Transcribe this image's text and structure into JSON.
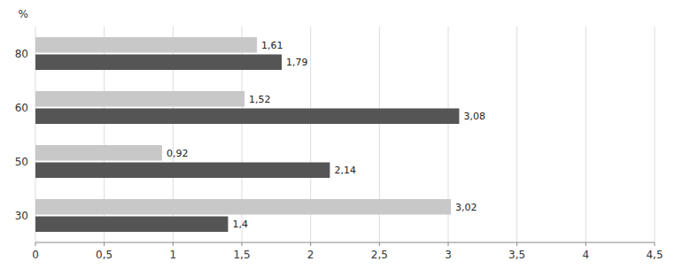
{
  "chart_data": {
    "type": "bar",
    "orientation": "horizontal",
    "ylabel": "%",
    "categories": [
      "80",
      "60",
      "50",
      "30"
    ],
    "series": [
      {
        "color": "#c8c8c8",
        "values": [
          1.61,
          1.52,
          0.92,
          3.02
        ],
        "value_labels": [
          "1,61",
          "1,52",
          "0,92",
          "3,02"
        ]
      },
      {
        "color": "#555555",
        "values": [
          1.79,
          3.08,
          2.14,
          1.4
        ],
        "value_labels": [
          "1,79",
          "3,08",
          "2,14",
          "1,4"
        ]
      }
    ],
    "xlim": [
      0,
      4.5
    ],
    "xticks": [
      0,
      {
        "value": 0.5,
        "label": "0,5"
      },
      1,
      {
        "value": 1.5,
        "label": "1,5"
      },
      2,
      {
        "value": 2.5,
        "label": "2,5"
      },
      3,
      {
        "value": 3.5,
        "label": "3,5"
      },
      4,
      {
        "value": 4.5,
        "label": "4,5"
      }
    ],
    "grid": true,
    "data_labels": true
  }
}
